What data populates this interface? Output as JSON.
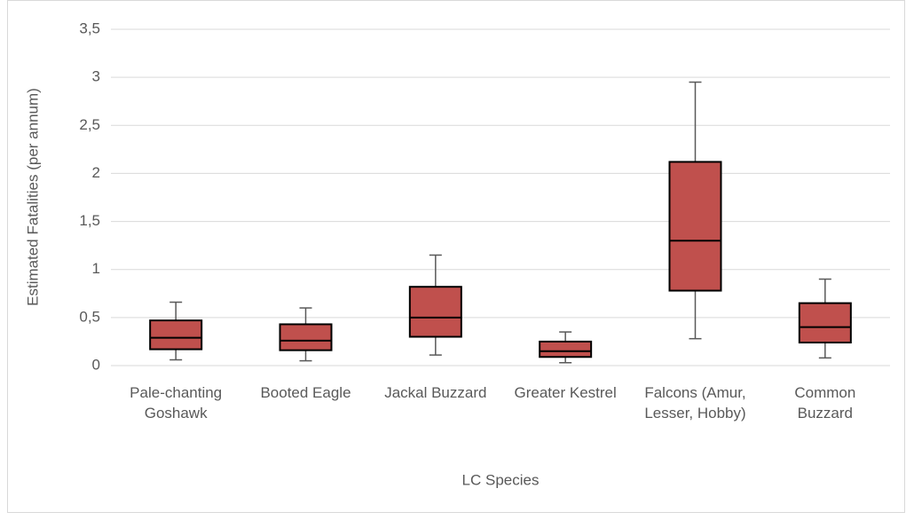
{
  "chart_data": {
    "type": "box",
    "y_label": "Estimated Fatalities (per annum)",
    "x_label": "LC Species",
    "categories": [
      "Pale-chanting Goshawk",
      "Booted Eagle",
      "Jackal Buzzard",
      "Greater Kestrel",
      "Falcons (Amur, Lesser, Hobby)",
      "Common Buzzard"
    ],
    "boxes": [
      {
        "min": 0.06,
        "q1": 0.17,
        "median": 0.29,
        "q3": 0.47,
        "max": 0.66
      },
      {
        "min": 0.05,
        "q1": 0.16,
        "median": 0.26,
        "q3": 0.43,
        "max": 0.6
      },
      {
        "min": 0.11,
        "q1": 0.3,
        "median": 0.5,
        "q3": 0.82,
        "max": 1.15
      },
      {
        "min": 0.03,
        "q1": 0.09,
        "median": 0.15,
        "q3": 0.25,
        "max": 0.35
      },
      {
        "min": 0.28,
        "q1": 0.78,
        "median": 1.3,
        "q3": 2.12,
        "max": 2.95
      },
      {
        "min": 0.08,
        "q1": 0.24,
        "median": 0.4,
        "q3": 0.65,
        "max": 0.9
      }
    ],
    "color": "#c0504d",
    "ylim": [
      0,
      3.5
    ],
    "yticks": [
      0,
      {
        "value": 0.5,
        "label": "0,5"
      },
      1,
      {
        "value": 1.5,
        "label": "1,5"
      },
      2,
      {
        "value": 2.5,
        "label": "2,5"
      },
      3,
      {
        "value": 3.5,
        "label": "3,5"
      }
    ],
    "grid": true
  }
}
